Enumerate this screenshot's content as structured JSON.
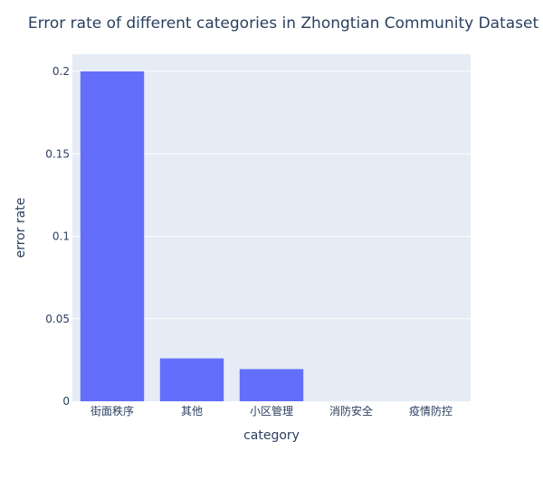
{
  "chart_data": {
    "type": "bar",
    "title": "Error rate of different categories in Zhongtian Community Dataset",
    "xlabel": "category",
    "ylabel": "error rate",
    "categories": [
      "街面秩序",
      "其他",
      "小区管理",
      "消防安全",
      "疫情防控"
    ],
    "values": [
      0.2,
      0.026,
      0.0195,
      0,
      0
    ],
    "ylim": [
      0,
      0.2
    ],
    "yticks": [
      0,
      0.05,
      0.1,
      0.15,
      0.2
    ],
    "ytick_labels": [
      "0",
      "0.05",
      "0.1",
      "0.15",
      "0.2"
    ],
    "grid": true,
    "bar_color": "#636efa",
    "plot_bg": "#e5ecf6"
  }
}
